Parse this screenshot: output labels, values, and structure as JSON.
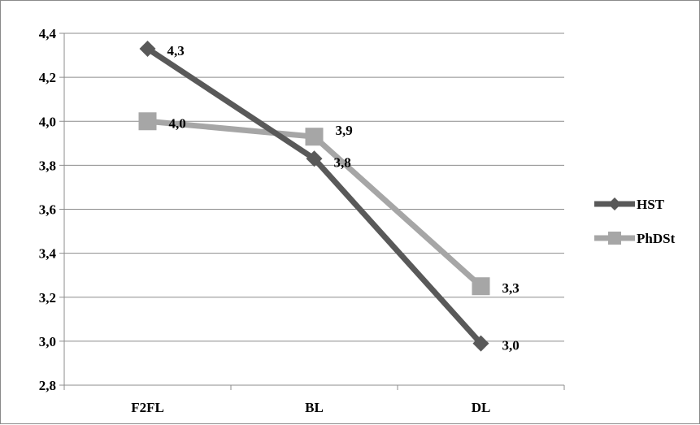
{
  "chart_data": {
    "type": "line",
    "categories": [
      "F2FL",
      "BL",
      "DL"
    ],
    "series": [
      {
        "name": "HST",
        "values": [
          4.33,
          3.83,
          2.99
        ],
        "labels": [
          "4,3",
          "3,8",
          "3,0"
        ],
        "color": "#595959",
        "marker": "diamond"
      },
      {
        "name": "PhDSt",
        "values": [
          4.0,
          3.93,
          3.25
        ],
        "labels": [
          "4,0",
          "3,9",
          "3,3"
        ],
        "color": "#a6a6a6",
        "marker": "square"
      }
    ],
    "ylim": [
      2.8,
      4.4
    ],
    "yticks": [
      2.8,
      3.0,
      3.2,
      3.4,
      3.6,
      3.8,
      4.0,
      4.2,
      4.4
    ],
    "ytick_labels": [
      "2,8",
      "3,0",
      "3,2",
      "3,4",
      "3,6",
      "3,8",
      "4,0",
      "4,2",
      "4,4"
    ],
    "title": "",
    "xlabel": "",
    "ylabel": "",
    "grid": true,
    "legend_position": "right"
  }
}
